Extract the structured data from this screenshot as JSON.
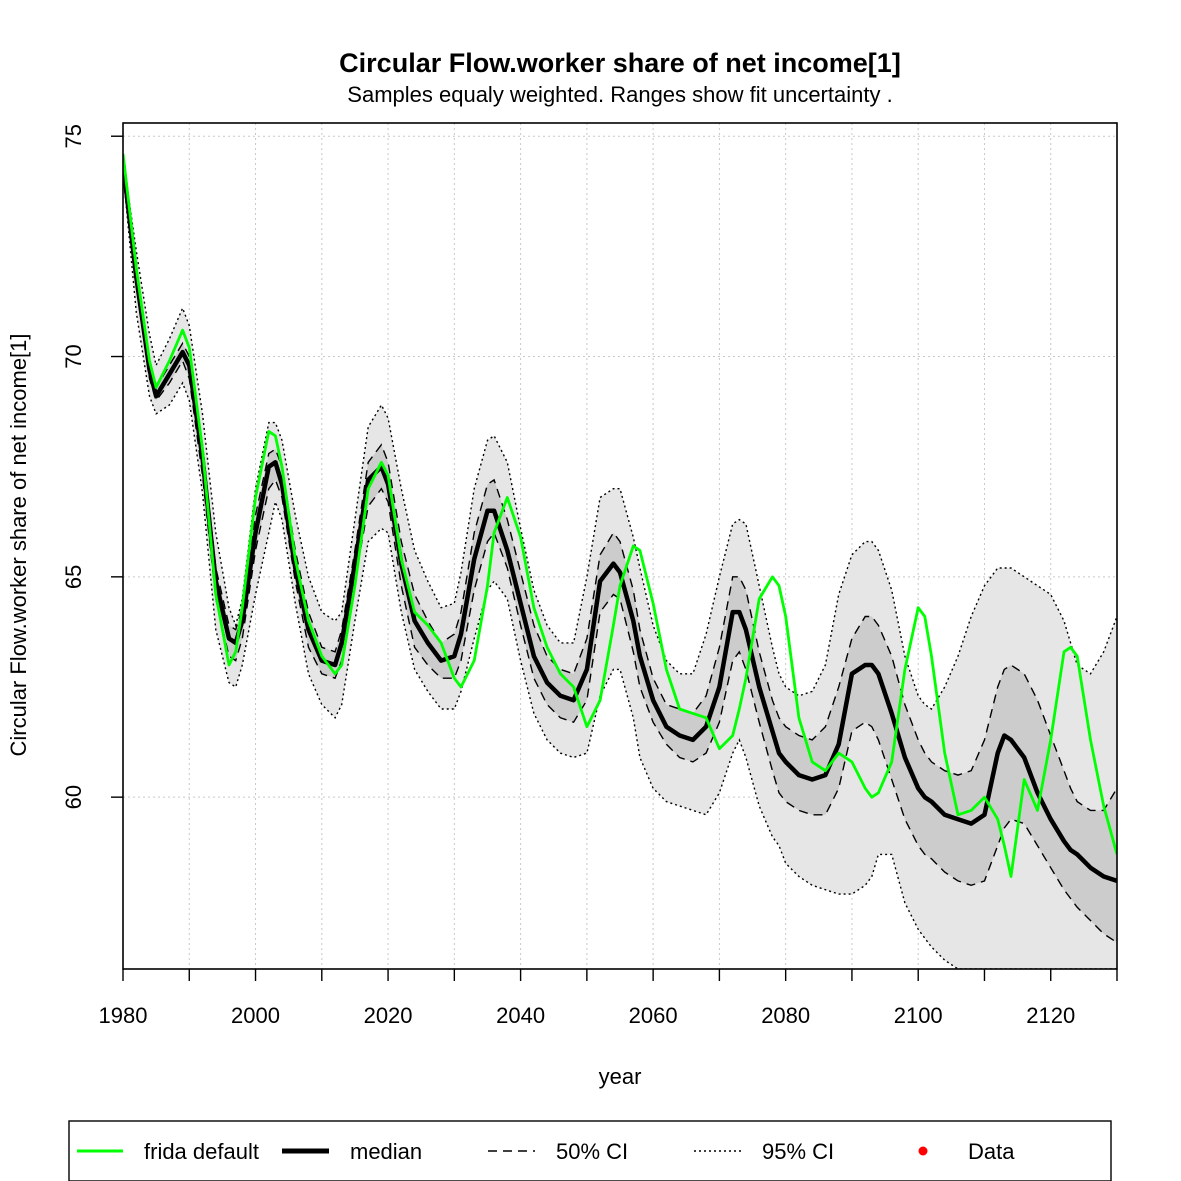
{
  "chart_data": {
    "type": "line",
    "title": "Circular Flow.worker share of net income[1]",
    "subtitle": "Samples equaly weighted. Ranges show  fit uncertainty .",
    "xlabel": "year",
    "ylabel": "Circular Flow.worker share of net income[1]",
    "xlim": [
      1980,
      2130
    ],
    "ylim": [
      56.1,
      75.3
    ],
    "x_ticks": [
      1980,
      1990,
      2000,
      2010,
      2020,
      2030,
      2040,
      2050,
      2060,
      2070,
      2080,
      2090,
      2100,
      2110,
      2120,
      2130
    ],
    "x_tick_labels": [
      1980,
      2000,
      2020,
      2040,
      2060,
      2080,
      2100,
      2120
    ],
    "y_ticks": [
      60,
      65,
      70,
      75
    ],
    "grid": true,
    "legend_position": "bottom",
    "legend": [
      {
        "label": "frida default",
        "style": "green-line"
      },
      {
        "label": "median",
        "style": "black-thick-line"
      },
      {
        "label": "50% CI",
        "style": "dashed-line"
      },
      {
        "label": "95% CI",
        "style": "dotted-line"
      },
      {
        "label": "Data",
        "style": "red-dot"
      }
    ],
    "colors": {
      "frida": "#00ff00",
      "median": "#000000",
      "ci50_fill": "#cccccc",
      "ci95_fill": "#e6e6e6",
      "data": "#ff0000",
      "grid": "#c8c8c8"
    },
    "x": [
      1980,
      1982,
      1984,
      1985,
      1987,
      1989,
      1990,
      1992,
      1994,
      1996,
      1997,
      1998,
      2000,
      2002,
      2003,
      2004,
      2006,
      2008,
      2010,
      2012,
      2013,
      2015,
      2017,
      2019,
      2020,
      2022,
      2024,
      2026,
      2028,
      2030,
      2031,
      2033,
      2035,
      2036,
      2038,
      2040,
      2042,
      2044,
      2046,
      2048,
      2050,
      2052,
      2054,
      2055,
      2057,
      2058,
      2060,
      2062,
      2064,
      2066,
      2068,
      2070,
      2072,
      2073,
      2074,
      2076,
      2078,
      2079,
      2080,
      2082,
      2084,
      2086,
      2088,
      2090,
      2092,
      2093,
      2094,
      2096,
      2098,
      2100,
      2101,
      2102,
      2104,
      2106,
      2108,
      2110,
      2112,
      2113,
      2114,
      2116,
      2118,
      2120,
      2122,
      2123,
      2124,
      2126,
      2128,
      2130
    ],
    "series": [
      {
        "name": "median",
        "values": [
          74.4,
          71.8,
          69.7,
          69.1,
          69.6,
          70.1,
          69.8,
          67.7,
          64.9,
          63.6,
          63.5,
          64.0,
          66.0,
          67.5,
          67.6,
          67.1,
          65.2,
          63.8,
          63.1,
          63.0,
          63.5,
          65.3,
          67.2,
          67.5,
          67.1,
          65.3,
          64.0,
          63.5,
          63.1,
          63.2,
          63.7,
          65.4,
          66.5,
          66.5,
          65.6,
          64.4,
          63.2,
          62.6,
          62.3,
          62.2,
          62.9,
          64.9,
          65.3,
          65.1,
          64.0,
          63.2,
          62.2,
          61.6,
          61.4,
          61.3,
          61.6,
          62.5,
          64.2,
          64.2,
          63.8,
          62.5,
          61.5,
          61.0,
          60.8,
          60.5,
          60.4,
          60.5,
          61.2,
          62.8,
          63.0,
          63.0,
          62.8,
          61.9,
          60.9,
          60.2,
          60.0,
          59.9,
          59.6,
          59.5,
          59.4,
          59.6,
          61.0,
          61.4,
          61.3,
          60.9,
          60.1,
          59.5,
          59.0,
          58.8,
          58.7,
          58.4,
          58.2,
          58.1
        ]
      },
      {
        "name": "frida default",
        "values": [
          74.6,
          72.0,
          69.9,
          69.3,
          69.9,
          70.6,
          70.2,
          67.9,
          64.6,
          63.0,
          63.3,
          64.3,
          66.8,
          68.3,
          68.2,
          67.5,
          65.4,
          64.0,
          63.2,
          62.8,
          63.0,
          64.8,
          67.0,
          67.6,
          67.3,
          65.4,
          64.2,
          63.9,
          63.5,
          62.7,
          62.5,
          63.1,
          64.8,
          66.0,
          66.8,
          65.9,
          64.3,
          63.4,
          62.8,
          62.5,
          61.6,
          62.2,
          63.9,
          64.8,
          65.7,
          65.6,
          64.4,
          62.9,
          62.0,
          61.9,
          61.8,
          61.1,
          61.4,
          62.0,
          62.7,
          64.5,
          65.0,
          64.8,
          64.1,
          61.8,
          60.8,
          60.6,
          61.0,
          60.8,
          60.2,
          60.0,
          60.1,
          60.8,
          62.9,
          64.3,
          64.1,
          63.2,
          61.0,
          59.6,
          59.7,
          60.0,
          59.5,
          58.9,
          58.2,
          60.4,
          59.7,
          61.3,
          63.3,
          63.4,
          63.2,
          61.3,
          59.8,
          58.7
        ]
      }
    ],
    "bands": [
      {
        "name": "95% CI",
        "upper": [
          74.5,
          72.4,
          70.5,
          69.8,
          70.4,
          71.1,
          70.7,
          68.7,
          66.0,
          64.3,
          63.9,
          64.5,
          67.0,
          68.5,
          68.5,
          68.1,
          66.4,
          65.0,
          64.2,
          64.0,
          64.2,
          66.3,
          68.4,
          68.9,
          68.6,
          67.0,
          65.6,
          64.9,
          64.3,
          64.4,
          65.1,
          67.0,
          68.1,
          68.2,
          67.6,
          66.1,
          64.7,
          63.9,
          63.5,
          63.5,
          65.0,
          66.8,
          67.0,
          67.0,
          65.9,
          65.2,
          63.9,
          63.1,
          62.8,
          62.8,
          63.7,
          65.0,
          66.2,
          66.3,
          66.2,
          64.8,
          63.4,
          62.8,
          62.5,
          62.3,
          62.4,
          63.0,
          64.6,
          65.5,
          65.8,
          65.8,
          65.6,
          64.7,
          63.2,
          62.3,
          62.1,
          62.0,
          62.5,
          63.2,
          64.1,
          64.8,
          65.2,
          65.2,
          65.2,
          65.0,
          64.8,
          64.6,
          64.0,
          63.5,
          63.0,
          62.8,
          63.3,
          64.1
        ],
        "lower": [
          74.2,
          71.0,
          69.1,
          68.7,
          68.9,
          69.4,
          69.0,
          66.9,
          63.8,
          62.6,
          62.5,
          63.0,
          64.6,
          66.0,
          66.7,
          66.3,
          64.4,
          62.8,
          62.1,
          61.8,
          62.1,
          64.0,
          65.8,
          66.1,
          66.0,
          64.2,
          62.9,
          62.4,
          62.0,
          62.0,
          62.4,
          63.6,
          64.7,
          64.9,
          64.5,
          63.1,
          61.9,
          61.3,
          61.0,
          60.9,
          61.0,
          62.3,
          62.9,
          62.9,
          61.8,
          60.9,
          60.2,
          59.9,
          59.8,
          59.7,
          59.6,
          60.1,
          61.0,
          61.3,
          60.9,
          59.8,
          59.1,
          58.9,
          58.5,
          58.2,
          58.0,
          57.9,
          57.8,
          57.8,
          58.0,
          58.2,
          58.7,
          58.7,
          57.6,
          57.0,
          56.8,
          56.6,
          56.3,
          56.1,
          56.1,
          56.1,
          56.1,
          56.1,
          56.1,
          56.1,
          56.1,
          56.1,
          56.1,
          56.1,
          56.1,
          56.1,
          56.1,
          56.1
        ]
      },
      {
        "name": "50% CI",
        "upper": [
          74.4,
          71.9,
          69.8,
          69.3,
          69.8,
          70.3,
          70.0,
          68.0,
          65.2,
          63.9,
          63.8,
          64.3,
          66.4,
          67.8,
          67.9,
          67.5,
          65.6,
          64.2,
          63.4,
          63.3,
          63.8,
          65.6,
          67.6,
          68.0,
          67.6,
          65.8,
          64.6,
          64.0,
          63.5,
          63.7,
          64.2,
          66.0,
          67.1,
          67.2,
          66.3,
          65.1,
          63.9,
          63.2,
          62.9,
          62.8,
          63.6,
          65.5,
          66.0,
          65.8,
          64.7,
          63.8,
          62.7,
          62.1,
          62.0,
          61.9,
          62.3,
          63.4,
          65.0,
          65.0,
          64.7,
          63.3,
          62.2,
          61.8,
          61.6,
          61.4,
          61.3,
          61.6,
          62.5,
          63.6,
          64.1,
          64.1,
          63.9,
          63.2,
          62.1,
          61.3,
          61.0,
          60.8,
          60.6,
          60.5,
          60.6,
          61.3,
          62.5,
          62.9,
          63.0,
          62.8,
          62.2,
          61.4,
          60.6,
          60.2,
          59.9,
          59.7,
          59.7,
          60.2
        ],
        "lower": [
          74.3,
          71.6,
          69.5,
          69.0,
          69.4,
          69.9,
          69.5,
          67.3,
          64.5,
          63.2,
          63.1,
          63.6,
          65.6,
          67.0,
          67.2,
          66.8,
          64.9,
          63.4,
          62.8,
          62.7,
          63.1,
          64.9,
          66.6,
          67.0,
          66.7,
          64.8,
          63.4,
          63.0,
          62.7,
          62.7,
          63.1,
          64.7,
          65.8,
          66.0,
          65.2,
          63.9,
          62.7,
          62.1,
          61.8,
          61.7,
          62.2,
          64.2,
          64.6,
          64.5,
          63.3,
          62.5,
          61.7,
          61.2,
          60.9,
          60.8,
          61.0,
          61.7,
          63.1,
          63.3,
          62.9,
          61.7,
          60.6,
          60.1,
          59.9,
          59.7,
          59.6,
          59.6,
          60.2,
          61.5,
          61.7,
          61.6,
          61.3,
          60.4,
          59.5,
          58.9,
          58.7,
          58.6,
          58.3,
          58.1,
          58.0,
          58.1,
          58.9,
          59.3,
          59.5,
          59.4,
          58.9,
          58.4,
          57.9,
          57.7,
          57.5,
          57.2,
          56.9,
          56.7
        ]
      }
    ]
  }
}
